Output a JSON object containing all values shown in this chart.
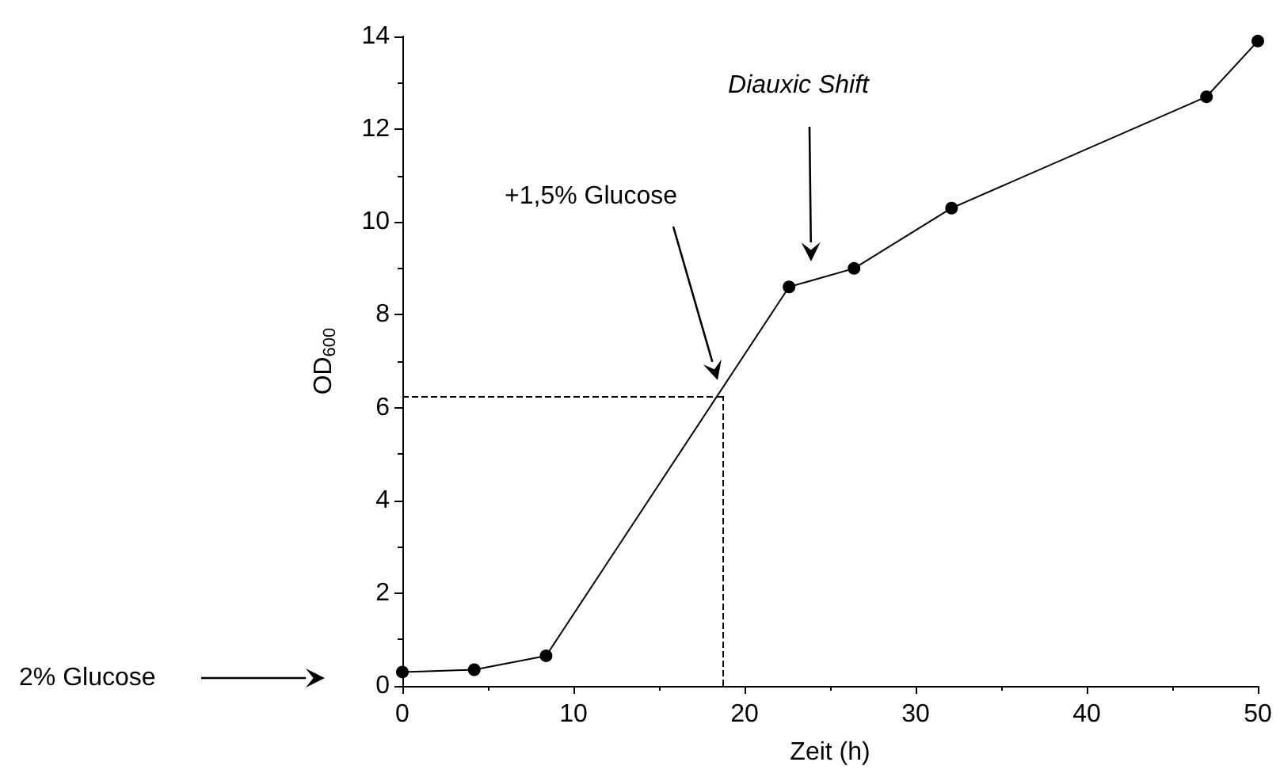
{
  "chart_data": {
    "type": "line",
    "xlabel": "Zeit (h)",
    "ylabel": "OD$_{600}$",
    "x": [
      0,
      4.2,
      8.4,
      22.6,
      26.4,
      32.1,
      47.0,
      50
    ],
    "series": [
      {
        "color": "#000000",
        "values": [
          0.3,
          0.35,
          0.65,
          8.6,
          9.0,
          10.3,
          12.7,
          13.9
        ]
      }
    ],
    "xlim": [
      0,
      50
    ],
    "xticks": [
      0,
      10,
      20,
      30,
      40,
      50
    ],
    "ylim": [
      0,
      14
    ],
    "yticks": [
      0,
      2,
      4,
      6,
      8,
      10,
      12,
      14
    ],
    "ref_lines": [
      {
        "axis": "y",
        "value": 6.25,
        "line_style": "dashed",
        "color": "#000000"
      },
      {
        "axis": "x",
        "value": 18.7,
        "line_style": "dashed",
        "color": "#000000"
      }
    ],
    "annotations": [
      "+1,5% Glucose",
      "Diauxic Shift",
      "2% Glucose"
    ],
    "marker": "circle",
    "line_style": "solid"
  }
}
